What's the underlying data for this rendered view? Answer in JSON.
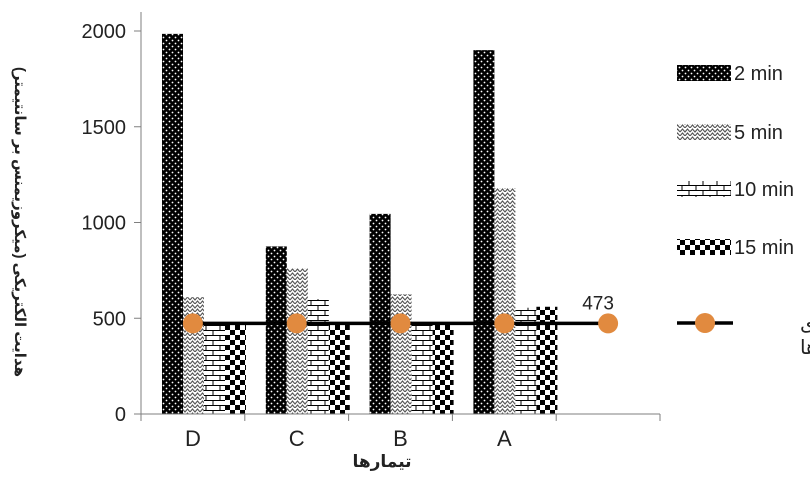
{
  "chart_data": {
    "type": "bar",
    "categories": [
      "A",
      "B",
      "C",
      "D"
    ],
    "series": [
      {
        "name": "2 min",
        "values": [
          1900,
          1045,
          875,
          1985
        ]
      },
      {
        "name": "5 min",
        "values": [
          1180,
          625,
          760,
          610
        ]
      },
      {
        "name": "10 min",
        "values": [
          555,
          480,
          600,
          470
        ]
      },
      {
        "name": "15 min",
        "values": [
          560,
          470,
          470,
          470
        ]
      }
    ],
    "line_series": {
      "name": "ورودی تیمارها",
      "value": 473,
      "label": "473"
    },
    "xlabel": "تیمارها",
    "ylabel": "هدایت الکتریکی (میکروزیمنس بر سانتیمتر)",
    "ylim": [
      0,
      2000
    ],
    "yticks": [
      "0",
      "500",
      "1000",
      "1500",
      "2000"
    ],
    "legend_position": "right",
    "grid": false,
    "category_order": "right-to-left"
  }
}
